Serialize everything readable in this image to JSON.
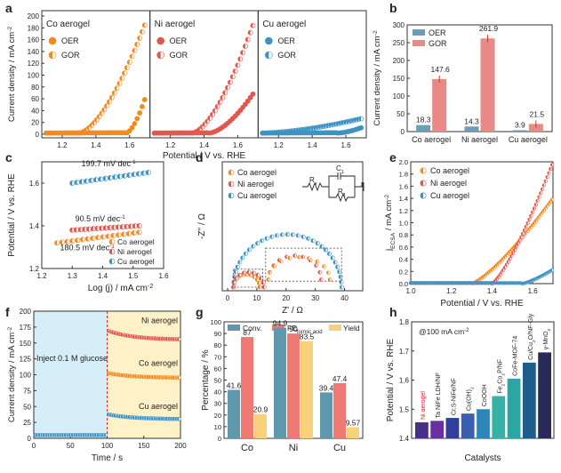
{
  "colors": {
    "co": "#f28a1e",
    "ni": "#e2574c",
    "cu": "#3c93c3",
    "oer_bar": "#6a9fb5",
    "gor_bar": "#e98a86",
    "yield": "#f7d27b",
    "conv": "#5f98ad",
    "fe": "#ef7a73",
    "cyan_bg": "#d6eef7",
    "yellow_bg": "#fff2c8"
  },
  "panel_labels": {
    "a": "a",
    "b": "b",
    "c": "c",
    "d": "d",
    "e": "e",
    "f": "f",
    "g": "g",
    "h": "h"
  },
  "chart_data": [
    {
      "id": "a",
      "type": "scatter",
      "ylabel": "Current density / mA cm",
      "ylabel_sup": "-2",
      "xlabel": "Potential / V vs. RHE",
      "ylim": [
        0,
        200
      ],
      "yticks": [
        0,
        20,
        40,
        60,
        80,
        100,
        120,
        140,
        160,
        180,
        200
      ],
      "xticks": [
        "1.2",
        "1.4",
        "1.6"
      ],
      "subpanels": [
        {
          "title": "Co aerogel",
          "legend": [
            "OER",
            "GOR"
          ],
          "xrange": [
            1.1,
            1.7
          ],
          "oer_onset": 1.58,
          "oer_end": 65,
          "gor_onset": 1.3,
          "gor_end": 190
        },
        {
          "title": "Ni aerogel",
          "legend": [
            "OER",
            "GOR"
          ],
          "xrange": [
            1.1,
            1.7
          ],
          "oer_onset": 1.43,
          "oer_end": 70,
          "gor_onset": 1.33,
          "gor_end": 190
        },
        {
          "title": "Cu aerogel",
          "legend": [
            "OER",
            "GOR"
          ],
          "xrange": [
            1.1,
            1.7
          ],
          "oer_onset": 1.55,
          "oer_end": 10,
          "gor_onset": 1.1,
          "gor_end": 25
        }
      ]
    },
    {
      "id": "b",
      "type": "bar",
      "ylabel": "Current density / mA cm",
      "ylabel_sup": "-2",
      "ylim": [
        0,
        300
      ],
      "yticks": [
        0,
        50,
        100,
        150,
        200,
        250,
        300
      ],
      "categories": [
        "Co aerogel",
        "Ni aerogel",
        "Cu aerogel"
      ],
      "legend": [
        "OER",
        "GOR"
      ],
      "series": [
        {
          "name": "OER",
          "values": [
            18.3,
            14.3,
            3.9
          ],
          "labels": [
            "18.3",
            "14.3",
            "3.9"
          ]
        },
        {
          "name": "GOR",
          "values": [
            147.6,
            261.9,
            21.5
          ],
          "labels": [
            "147.6",
            "261.9",
            "21.5"
          ]
        }
      ]
    },
    {
      "id": "c",
      "type": "scatter",
      "ylabel": "Potential / V vs. RHE",
      "xlabel": "Log (j) / mA cm",
      "xlabel_sup": "-2",
      "xlim": [
        1.2,
        1.6
      ],
      "ylim": [
        1.2,
        1.7
      ],
      "xticks": [
        "1.2",
        "1.3",
        "1.4",
        "1.5",
        "1.6"
      ],
      "yticks": [
        "1.2",
        "1.4",
        "1.6"
      ],
      "legend": [
        "Co aerogel",
        "Ni aerogel",
        "Cu aerogel"
      ],
      "series": [
        {
          "name": "Co aerogel",
          "x": [
            1.25,
            1.52
          ],
          "y": [
            1.32,
            1.37
          ],
          "slope": "180.5 mV dec"
        },
        {
          "name": "Ni aerogel",
          "x": [
            1.3,
            1.52
          ],
          "y": [
            1.38,
            1.4
          ],
          "slope": "90.5 mV dec"
        },
        {
          "name": "Cu aerogel",
          "x": [
            1.3,
            1.55
          ],
          "y": [
            1.6,
            1.65
          ],
          "slope": "199.7 mV dec"
        }
      ],
      "slope_sup": "-1"
    },
    {
      "id": "d",
      "type": "scatter",
      "ylabel": "-Z'' / Ω",
      "xlabel": "Z' / Ω",
      "xlim": [
        0,
        45
      ],
      "ylim": [
        0,
        40
      ],
      "xticks": [
        "0",
        "10",
        "20",
        "30",
        "40"
      ],
      "yticks": [
        "0",
        "10",
        "20",
        "30",
        "40"
      ],
      "legend": [
        "Co aerogel",
        "Ni aerogel",
        "Cu aerogel"
      ],
      "circuit": {
        "r1": "R",
        "r1_sub": "s",
        "c": "C",
        "c_sub": "1",
        "r2": "R",
        "r2_sub": "1"
      }
    },
    {
      "id": "e",
      "type": "scatter",
      "ylabel": "j",
      "ylabel_sub": "ECSA",
      "ylabel_rest": " / mA cm",
      "ylabel_sup": "-2",
      "xlabel": "Potential / V vs. RHE",
      "xlim": [
        1.0,
        1.7
      ],
      "ylim": [
        0,
        2.0
      ],
      "xticks": [
        "1.0",
        "1.2",
        "1.4",
        "1.6"
      ],
      "yticks": [
        "0.0",
        "0.2",
        "0.4",
        "0.6",
        "0.8",
        "1.0",
        "1.2",
        "1.4",
        "1.6",
        "1.8",
        "2.0"
      ],
      "legend": [
        "Co aerogel",
        "Ni aerogel",
        "Cu aerogel"
      ]
    },
    {
      "id": "f",
      "type": "line",
      "ylabel": "Current density / mA cm",
      "ylabel_sup": "-2",
      "xlabel": "Time / s",
      "xlim": [
        0,
        200
      ],
      "ylim": [
        0,
        200
      ],
      "xticks": [
        "0",
        "50",
        "100",
        "150",
        "200"
      ],
      "yticks": [
        "0",
        "25",
        "50",
        "75",
        "100",
        "125",
        "150",
        "175",
        "200"
      ],
      "annotation": "Inject 0.1 M glucose",
      "inject_time": 100,
      "series": [
        {
          "name": "Ni aerogel",
          "start": 170,
          "end": 155
        },
        {
          "name": "Co aerogel",
          "start": 103,
          "end": 95
        },
        {
          "name": "Cu aerogel",
          "start": 38,
          "end": 30
        }
      ],
      "baseline": 5
    },
    {
      "id": "g",
      "type": "bar",
      "ylabel": "Percentage / %",
      "ylim": [
        0,
        100
      ],
      "yticks": [
        "0",
        "10",
        "20",
        "30",
        "40",
        "50",
        "60",
        "70",
        "80",
        "90",
        "100"
      ],
      "categories": [
        "Co",
        "Ni",
        "Cu"
      ],
      "legend": [
        "Conv.",
        "FE",
        "Yield"
      ],
      "legend_fe_sub": "formic acid",
      "series": [
        {
          "name": "Conv.",
          "values": [
            41.6,
            94.9,
            39.4
          ],
          "labels": [
            "41.6",
            "94.9",
            "39.4"
          ]
        },
        {
          "name": "FE",
          "values": [
            87,
            90,
            47.4
          ],
          "labels": [
            "87",
            "90",
            "47.4"
          ]
        },
        {
          "name": "Yield",
          "values": [
            20.9,
            83.5,
            9.57
          ],
          "labels": [
            "20.9",
            "83.5",
            "9.57"
          ]
        }
      ]
    },
    {
      "id": "h",
      "type": "bar",
      "ylabel": "Potential / V vs. RHE",
      "xlabel": "Catalysts",
      "ylim": [
        1.4,
        1.8
      ],
      "yticks": [
        "1.4",
        "1.5",
        "1.6",
        "1.7",
        "1.8"
      ],
      "annotation": "@100 mA cm",
      "annotation_sup": "-2",
      "categories": [
        "Ni aerogel",
        "Ta NiFe LDH/NF",
        "Cr,S-NiFe/NF",
        "Cu(OH)",
        "CoOOH",
        "Fe Co P/NF",
        "CoFe-MOF-74",
        "Cu/Cu O/NF-Gly",
        "γ-MnO"
      ],
      "values": [
        1.455,
        1.46,
        1.47,
        1.485,
        1.5,
        1.545,
        1.605,
        1.66,
        1.695
      ],
      "colors": [
        "#4a2f8a",
        "#6a2ea0",
        "#2f3f9a",
        "#3a5fb0",
        "#2e86b8",
        "#36b1a6",
        "#2ca6a4",
        "#1f5c8a",
        "#2a2a5a"
      ]
    }
  ],
  "label_parts": {
    "cuoh2_sub": "2",
    "fe2co2p_a": "Fe",
    "fe2co2p_sub1": "2",
    "fe2co2p_b": "Co",
    "fe2co2p_sub2": "2",
    "fe2co2p_c": "P/NF",
    "cu2o_a": "Cu/Cu",
    "cu2o_sub": "2",
    "cu2o_b": "O/NF-Gly",
    "mno2_a": "γ-MnO",
    "mno2_sub": "2"
  }
}
